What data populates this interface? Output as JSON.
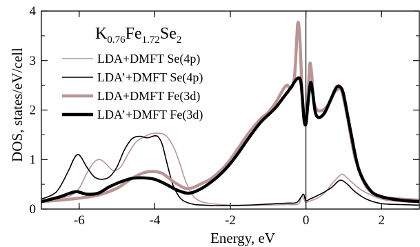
{
  "chart_data": {
    "type": "line",
    "title": "",
    "xlabel": "Energy, eV",
    "ylabel": "DOS, states/eV/cell",
    "xlim": [
      -7,
      3
    ],
    "ylim": [
      0,
      4
    ],
    "xticks": [
      -6,
      -4,
      -2,
      0,
      2
    ],
    "yticks": [
      0,
      1,
      2,
      3,
      4
    ],
    "xtick_labels": [
      "-6",
      "-4",
      "-2",
      "0",
      "2"
    ],
    "ytick_labels": [
      "0",
      "1",
      "2",
      "3",
      "4"
    ],
    "grid": false,
    "legend_position": "top-left",
    "vertical_reference_line_x": 0,
    "annotation": {
      "base": "K",
      "sub1": "0.76",
      "mid": "Fe",
      "sub2": "1.72",
      "end": "Se",
      "sub3": "2"
    },
    "series": [
      {
        "name": "LDA+DMFT Se(4p)",
        "color": "#b99595",
        "width": "thin",
        "x": [
          -7.0,
          -6.5,
          -6.2,
          -6.0,
          -5.8,
          -5.6,
          -5.45,
          -5.3,
          -5.1,
          -4.9,
          -4.7,
          -4.5,
          -4.3,
          -4.1,
          -3.9,
          -3.7,
          -3.5,
          -3.35,
          -3.2,
          -3.0,
          -2.8,
          -2.6,
          -2.4,
          -2.0,
          -1.5,
          -1.0,
          -0.5,
          -0.2,
          -0.12,
          -0.05,
          0.0,
          0.1,
          0.3,
          0.5,
          0.7,
          0.9,
          1.0,
          1.2,
          1.5,
          2.0,
          2.5,
          3.0
        ],
        "y": [
          0.17,
          0.22,
          0.28,
          0.42,
          0.72,
          0.95,
          1.0,
          0.92,
          0.78,
          0.85,
          1.12,
          1.35,
          1.45,
          1.52,
          1.53,
          1.48,
          1.25,
          0.95,
          0.6,
          0.28,
          0.16,
          0.12,
          0.1,
          0.08,
          0.08,
          0.08,
          0.09,
          0.1,
          0.25,
          0.2,
          0.13,
          0.16,
          0.22,
          0.33,
          0.52,
          0.68,
          0.69,
          0.55,
          0.37,
          0.2,
          0.15,
          0.13
        ]
      },
      {
        "name": "LDA’+DMFT Se(4p)",
        "color": "#000000",
        "width": "thin",
        "x": [
          -7.0,
          -6.6,
          -6.3,
          -6.15,
          -6.05,
          -5.95,
          -5.8,
          -5.6,
          -5.4,
          -5.2,
          -5.0,
          -4.8,
          -4.6,
          -4.4,
          -4.2,
          -4.0,
          -3.9,
          -3.8,
          -3.7,
          -3.6,
          -3.5,
          -3.3,
          -3.0,
          -2.7,
          -2.4,
          -2.0,
          -1.5,
          -1.0,
          -0.5,
          -0.25,
          -0.12,
          -0.06,
          0.0,
          0.1,
          0.3,
          0.5,
          0.7,
          0.85,
          0.95,
          1.1,
          1.3,
          1.6,
          2.0,
          2.5,
          3.0
        ],
        "y": [
          0.2,
          0.35,
          0.75,
          1.0,
          1.1,
          1.05,
          0.85,
          0.65,
          0.6,
          0.65,
          0.85,
          1.2,
          1.42,
          1.47,
          1.44,
          1.48,
          1.45,
          1.3,
          1.0,
          0.7,
          0.45,
          0.2,
          0.1,
          0.08,
          0.07,
          0.07,
          0.08,
          0.1,
          0.12,
          0.13,
          0.25,
          0.3,
          0.17,
          0.2,
          0.27,
          0.35,
          0.45,
          0.56,
          0.58,
          0.5,
          0.35,
          0.2,
          0.11,
          0.09,
          0.08
        ]
      },
      {
        "name": "LDA+DMFT Fe(3d)",
        "color": "#b99595",
        "width": "thick",
        "x": [
          -7.0,
          -6.5,
          -6.0,
          -5.5,
          -5.0,
          -4.6,
          -4.3,
          -4.05,
          -3.8,
          -3.5,
          -3.2,
          -3.0,
          -2.8,
          -2.5,
          -2.2,
          -2.0,
          -1.8,
          -1.5,
          -1.2,
          -1.0,
          -0.8,
          -0.6,
          -0.5,
          -0.4,
          -0.3,
          -0.22,
          -0.17,
          -0.13,
          -0.1,
          -0.05,
          0.0,
          0.05,
          0.1,
          0.15,
          0.2,
          0.3,
          0.45,
          0.6,
          0.75,
          0.85,
          0.95,
          1.1,
          1.3,
          1.6,
          2.0,
          2.5,
          3.0
        ],
        "y": [
          0.15,
          0.18,
          0.22,
          0.28,
          0.42,
          0.62,
          0.73,
          0.76,
          0.72,
          0.55,
          0.42,
          0.43,
          0.5,
          0.62,
          0.82,
          1.0,
          1.22,
          1.55,
          1.82,
          1.95,
          2.15,
          2.42,
          2.5,
          2.45,
          2.7,
          3.72,
          3.55,
          2.9,
          2.3,
          1.9,
          1.75,
          2.2,
          2.92,
          2.75,
          2.2,
          2.0,
          2.0,
          2.12,
          2.35,
          2.42,
          2.38,
          1.85,
          1.05,
          0.45,
          0.25,
          0.2,
          0.18
        ]
      },
      {
        "name": "LDA’+DMFT Fe(3d)",
        "color": "#000000",
        "width": "thick",
        "x": [
          -7.0,
          -6.5,
          -6.1,
          -5.8,
          -5.5,
          -5.2,
          -4.9,
          -4.6,
          -4.3,
          -4.0,
          -3.7,
          -3.4,
          -3.1,
          -2.8,
          -2.5,
          -2.2,
          -2.0,
          -1.8,
          -1.5,
          -1.2,
          -1.0,
          -0.8,
          -0.6,
          -0.4,
          -0.25,
          -0.15,
          -0.1,
          -0.05,
          0.0,
          0.05,
          0.12,
          0.18,
          0.25,
          0.35,
          0.5,
          0.65,
          0.8,
          0.9,
          1.0,
          1.2,
          1.4,
          1.7,
          2.0,
          2.5,
          3.0
        ],
        "y": [
          0.15,
          0.25,
          0.35,
          0.3,
          0.32,
          0.45,
          0.55,
          0.62,
          0.63,
          0.6,
          0.5,
          0.38,
          0.32,
          0.4,
          0.55,
          0.75,
          0.92,
          1.12,
          1.45,
          1.75,
          1.9,
          2.05,
          2.25,
          2.45,
          2.62,
          2.62,
          2.3,
          1.8,
          1.72,
          2.1,
          2.55,
          2.35,
          1.95,
          1.85,
          1.95,
          2.2,
          2.45,
          2.47,
          2.3,
          1.5,
          0.8,
          0.38,
          0.25,
          0.18,
          0.15
        ]
      }
    ]
  }
}
